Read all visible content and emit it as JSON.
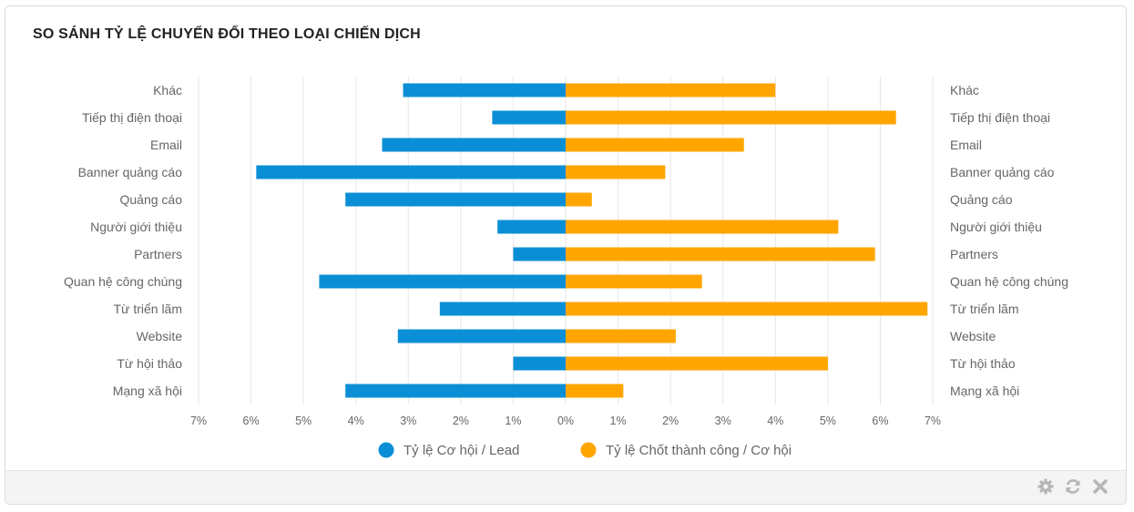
{
  "panel": {
    "title": "SO SÁNH TỶ LỆ CHUYỂN ĐỔI THEO LOẠI CHIẾN DỊCH"
  },
  "footer": {
    "icons": [
      "gear-icon",
      "refresh-icon",
      "close-icon"
    ]
  },
  "chart_data": {
    "type": "bar",
    "orientation": "horizontal-diverging",
    "categories": [
      "Khác",
      "Tiếp thị điện thoại",
      "Email",
      "Banner quảng cáo",
      "Quảng cáo",
      "Người giới thiệu",
      "Partners",
      "Quan hệ công chúng",
      "Từ triển lãm",
      "Website",
      "Từ hội thảo",
      "Mạng xã hội"
    ],
    "series": [
      {
        "name": "Tỷ lệ Cơ hội / Lead",
        "color": "#0a8fd6",
        "side": "left",
        "values": [
          3.1,
          1.4,
          3.5,
          5.9,
          4.2,
          1.3,
          1.0,
          4.7,
          2.4,
          3.2,
          1.0,
          4.2
        ]
      },
      {
        "name": "Tỷ lệ Chốt thành công / Cơ hội",
        "color": "#ffa500",
        "side": "right",
        "values": [
          4.0,
          6.3,
          3.4,
          1.9,
          0.5,
          5.2,
          5.9,
          2.6,
          6.9,
          2.1,
          5.0,
          1.1
        ]
      }
    ],
    "xlim": [
      -7,
      7
    ],
    "xticks": [
      "7%",
      "6%",
      "5%",
      "4%",
      "3%",
      "2%",
      "1%",
      "0%",
      "1%",
      "2%",
      "3%",
      "4%",
      "5%",
      "6%",
      "7%"
    ],
    "grid": true,
    "legend": "bottom-center"
  }
}
